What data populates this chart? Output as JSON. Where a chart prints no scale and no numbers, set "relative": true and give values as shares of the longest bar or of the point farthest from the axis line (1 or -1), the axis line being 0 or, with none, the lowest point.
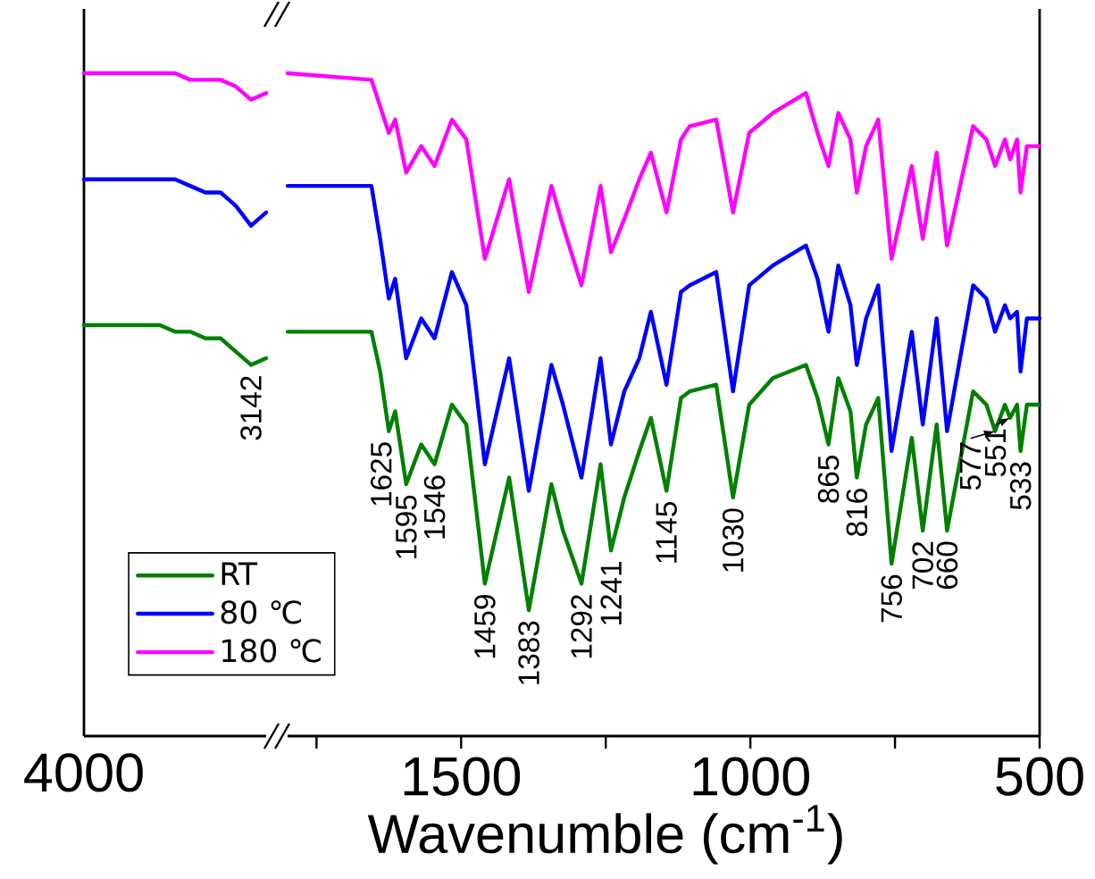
{
  "chart_data": [
    {
      "type": "line",
      "relative": true,
      "legend": "bottom right",
      "categories": [
        null,
        null,
        null,
        null,
        null,
        null,
        null,
        null,
        null,
        null,
        null,
        null,
        null
      ],
      "series": [
        {
          "name": "RT",
          "color": "#008000",
          "values": [
            0.62,
            0.62,
            0.62,
            0.62,
            0.62,
            0.62,
            0.61,
            0.61,
            0.6,
            0.6,
            0.58,
            0.56,
            0.57
          ]
        },
        {
          "name": "80 ℃",
          "color": "#0000ff",
          "values": [
            0.84,
            0.84,
            0.84,
            0.84,
            0.84,
            0.84,
            0.84,
            0.83,
            0.82,
            0.82,
            0.8,
            0.77,
            0.79
          ]
        },
        {
          "name": "180 ℃",
          "color": "#ff00ff",
          "values": [
            1.0,
            1.0,
            1.0,
            1.0,
            1.0,
            1.0,
            1.0,
            0.99,
            0.99,
            0.99,
            0.98,
            0.96,
            0.97
          ]
        }
      ],
      "annotations": [
        "4000",
        {
          "text": "3142",
          "y": 0.56
        }
      ]
    },
    {
      "type": "line",
      "relative": true,
      "xlim": [
        1800,
        500
      ],
      "xlabel": "Wavenumble (cm$^{-1}$)",
      "xticks": [
        {
          "value": 1750,
          "label": null
        },
        1500,
        {
          "value": 1250,
          "label": null
        },
        1000,
        {
          "value": 750,
          "label": null
        },
        500
      ],
      "x": [
        1800,
        1655,
        1640,
        1625,
        1614,
        1595,
        1569,
        1546,
        1516,
        1491,
        1459,
        1417,
        1383,
        1344,
        1324,
        1292,
        1259,
        1241,
        1218,
        1192,
        1172,
        1145,
        1120,
        1105,
        1059,
        1030,
        1002,
        961,
        904,
        884,
        865,
        848,
        827,
        816,
        800,
        779,
        756,
        721,
        702,
        678,
        660,
        615,
        592,
        577,
        560,
        551,
        539,
        533,
        522,
        500
      ],
      "series": [
        {
          "color": "#008000",
          "values": [
            0.61,
            0.61,
            0.55,
            0.46,
            0.49,
            0.38,
            0.44,
            0.41,
            0.5,
            0.47,
            0.23,
            0.39,
            0.19,
            0.38,
            0.31,
            0.23,
            0.41,
            0.28,
            0.36,
            0.43,
            0.48,
            0.37,
            0.51,
            0.52,
            0.53,
            0.36,
            0.5,
            0.54,
            0.56,
            0.51,
            0.44,
            0.54,
            0.49,
            0.39,
            0.47,
            0.51,
            0.26,
            0.45,
            0.31,
            0.47,
            0.31,
            0.52,
            0.5,
            0.46,
            0.5,
            0.48,
            0.5,
            0.43,
            0.5,
            0.5
          ]
        },
        {
          "color": "#0000ff",
          "values": [
            0.83,
            0.83,
            0.75,
            0.66,
            0.69,
            0.57,
            0.63,
            0.6,
            0.7,
            0.65,
            0.41,
            0.57,
            0.37,
            0.56,
            0.5,
            0.39,
            0.57,
            0.44,
            0.52,
            0.57,
            0.64,
            0.53,
            0.67,
            0.68,
            0.7,
            0.52,
            0.68,
            0.71,
            0.74,
            0.69,
            0.61,
            0.71,
            0.65,
            0.56,
            0.63,
            0.68,
            0.43,
            0.61,
            0.47,
            0.63,
            0.46,
            0.68,
            0.66,
            0.61,
            0.65,
            0.63,
            0.64,
            0.55,
            0.63,
            0.63
          ]
        },
        {
          "color": "#ff00ff",
          "values": [
            1.0,
            0.99,
            0.95,
            0.91,
            0.93,
            0.85,
            0.89,
            0.86,
            0.93,
            0.9,
            0.72,
            0.84,
            0.67,
            0.83,
            0.77,
            0.68,
            0.83,
            0.73,
            0.78,
            0.84,
            0.88,
            0.79,
            0.9,
            0.92,
            0.93,
            0.79,
            0.91,
            0.94,
            0.97,
            0.91,
            0.86,
            0.94,
            0.9,
            0.82,
            0.89,
            0.93,
            0.72,
            0.86,
            0.75,
            0.88,
            0.74,
            0.92,
            0.9,
            0.86,
            0.9,
            0.87,
            0.9,
            0.82,
            0.89,
            0.89
          ]
        }
      ],
      "annotations": [
        {
          "text": "1625",
          "x": 1625,
          "y": 0.46
        },
        {
          "text": "1595",
          "x": 1595,
          "y": 0.38
        },
        {
          "text": "1546",
          "x": 1546,
          "y": 0.41
        },
        {
          "text": "1459",
          "x": 1459,
          "y": 0.23
        },
        {
          "text": "1383",
          "x": 1383,
          "y": 0.19
        },
        {
          "text": "1292",
          "x": 1292,
          "y": 0.23
        },
        {
          "text": "1241",
          "x": 1241,
          "y": 0.28
        },
        {
          "text": "1145",
          "x": 1145,
          "y": 0.37
        },
        {
          "text": "1030",
          "x": 1030,
          "y": 0.36
        },
        {
          "text": "865",
          "x": 865,
          "y": 0.44
        },
        {
          "text": "816",
          "x": 816,
          "y": 0.39
        },
        {
          "text": "756",
          "x": 756,
          "y": 0.26
        },
        {
          "text": "702",
          "x": 702,
          "y": 0.31
        },
        {
          "text": "660",
          "x": 660,
          "y": 0.31
        },
        {
          "text": "577",
          "x": 577,
          "y": 0.46
        },
        {
          "text": "551",
          "x": 551,
          "y": 0.48
        },
        {
          "text": "533",
          "x": 533,
          "y": 0.43
        }
      ]
    }
  ]
}
